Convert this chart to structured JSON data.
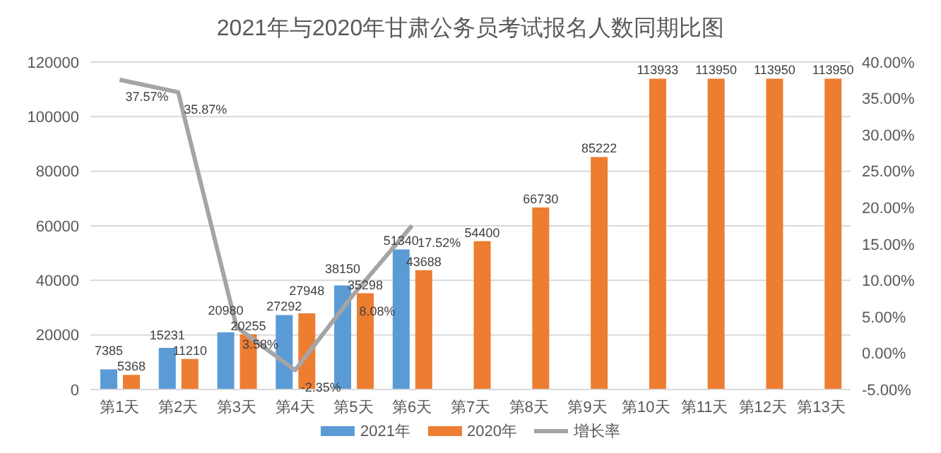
{
  "chart_data": {
    "type": "bar",
    "title": "2021年与2020年甘肃公务员考试报名人数同期比图",
    "categories": [
      "第1天",
      "第2天",
      "第3天",
      "第4天",
      "第5天",
      "第6天",
      "第7天",
      "第8天",
      "第9天",
      "第10天",
      "第11天",
      "第12天",
      "第13天"
    ],
    "series": [
      {
        "name": "2021年",
        "color": "#5b9bd5",
        "values": [
          7385,
          15231,
          20980,
          27292,
          38150,
          51340,
          null,
          null,
          null,
          null,
          null,
          null,
          null
        ]
      },
      {
        "name": "2020年",
        "color": "#ed7d31",
        "values": [
          5368,
          11210,
          20255,
          27948,
          35298,
          43688,
          54400,
          66730,
          85222,
          113933,
          113950,
          113950,
          113950
        ]
      },
      {
        "name": "增长率",
        "type": "line",
        "axis": "y2",
        "color": "#a5a5a5",
        "values": [
          37.57,
          35.87,
          3.58,
          -2.35,
          8.08,
          17.52,
          null,
          null,
          null,
          null,
          null,
          null,
          null
        ],
        "value_labels": [
          "37.57%",
          "35.87%",
          "3.58%",
          "-2.35%",
          "8.08%",
          "17.52%",
          null,
          null,
          null,
          null,
          null,
          null,
          null
        ]
      }
    ],
    "ylim": [
      0,
      120000
    ],
    "yticks": [
      0,
      20000,
      40000,
      60000,
      80000,
      100000,
      120000
    ],
    "y2lim": [
      -5,
      40
    ],
    "y2ticks": [
      {
        "value": -5,
        "label": "-5.00%"
      },
      {
        "value": 0,
        "label": "0.00%"
      },
      {
        "value": 5,
        "label": "5.00%"
      },
      {
        "value": 10,
        "label": "10.00%"
      },
      {
        "value": 15,
        "label": "15.00%"
      },
      {
        "value": 20,
        "label": "20.00%"
      },
      {
        "value": 25,
        "label": "25.00%"
      },
      {
        "value": 30,
        "label": "30.00%"
      },
      {
        "value": 35,
        "label": "35.00%"
      },
      {
        "value": 40,
        "label": "40.00%"
      }
    ],
    "grid": "y",
    "legend": "bottom",
    "data_labels": true,
    "marker": "none"
  }
}
